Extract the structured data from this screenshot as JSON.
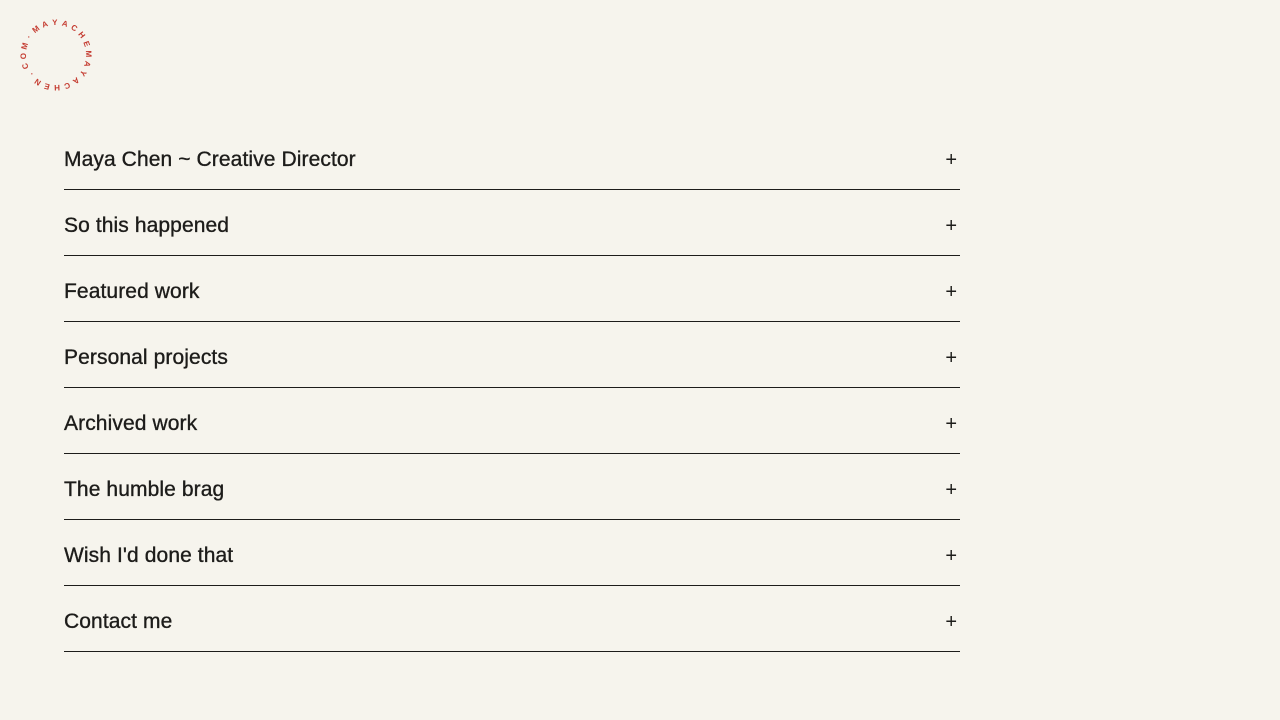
{
  "colors": {
    "background": "#f6f4ed",
    "ink": "#1d1c1a",
    "accent_red": "#c43a2f"
  },
  "logo": {
    "characters": "·MAYACHEMAYACHEN.COM"
  },
  "accordion": {
    "toggle_symbol": "+",
    "items": [
      {
        "label": "Maya Chen ~ Creative Director"
      },
      {
        "label": "So this happened"
      },
      {
        "label": "Featured work"
      },
      {
        "label": "Personal projects"
      },
      {
        "label": "Archived work"
      },
      {
        "label": "The humble brag"
      },
      {
        "label": "Wish I'd done that"
      },
      {
        "label": "Contact me"
      }
    ]
  }
}
